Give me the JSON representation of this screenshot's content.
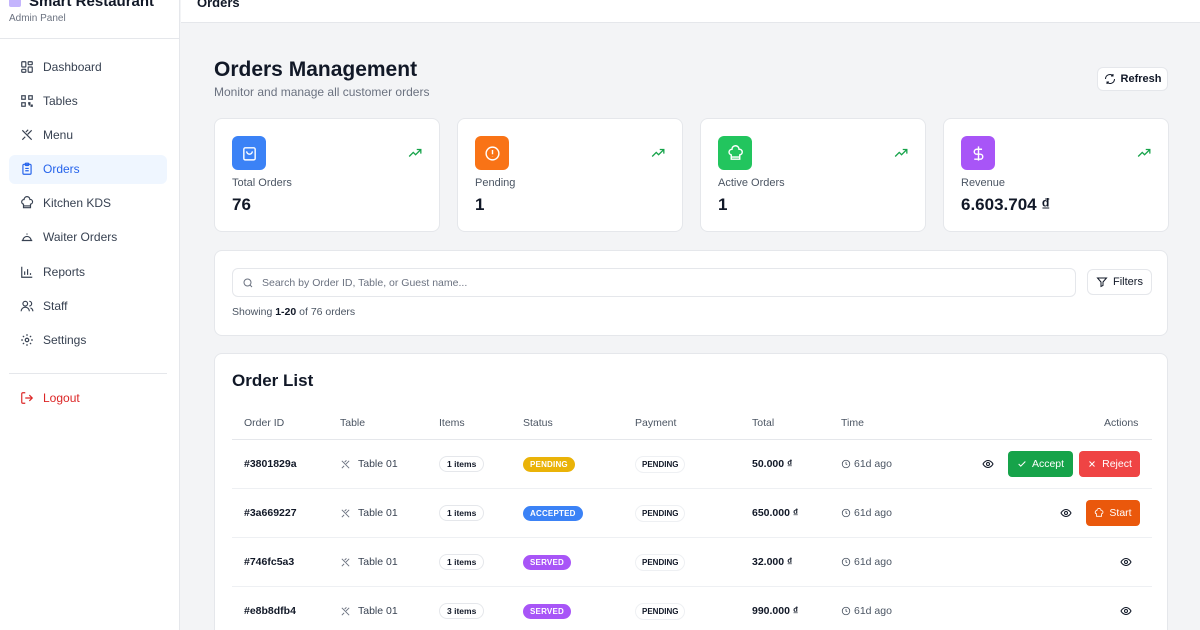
{
  "brand": {
    "title": "Smart Restaurant",
    "subtitle": "Admin Panel"
  },
  "sidebar": {
    "items": [
      {
        "label": "Dashboard",
        "icon": "dashboard-icon"
      },
      {
        "label": "Tables",
        "icon": "qr-icon"
      },
      {
        "label": "Menu",
        "icon": "utensils-icon"
      },
      {
        "label": "Orders",
        "icon": "clipboard-icon",
        "active": true
      },
      {
        "label": "Kitchen KDS",
        "icon": "chef-hat-icon"
      },
      {
        "label": "Waiter Orders",
        "icon": "bell-icon"
      },
      {
        "label": "Reports",
        "icon": "bar-chart-icon"
      },
      {
        "label": "Staff",
        "icon": "users-icon"
      },
      {
        "label": "Settings",
        "icon": "gear-icon"
      }
    ],
    "logout": "Logout"
  },
  "topbar": {
    "title": "Orders"
  },
  "header": {
    "title": "Orders Management",
    "subtitle": "Monitor and manage all customer orders",
    "refresh_label": "Refresh"
  },
  "stats": [
    {
      "label": "Total Orders",
      "value": "76",
      "color": "#3b82f6",
      "icon": "bag-icon"
    },
    {
      "label": "Pending",
      "value": "1",
      "color": "#f97316",
      "icon": "alert-circle-icon"
    },
    {
      "label": "Active Orders",
      "value": "1",
      "color": "#22c55e",
      "icon": "chef-hat-icon"
    },
    {
      "label": "Revenue",
      "value": "6.603.704 ₫",
      "color": "#a855f7",
      "icon": "dollar-icon"
    }
  ],
  "search": {
    "placeholder": "Search by Order ID, Table, or Guest name...",
    "value": "",
    "filters_label": "Filters",
    "showing_prefix": "Showing",
    "showing_range": "1-20",
    "showing_suffix": "of 76 orders"
  },
  "order_list": {
    "title": "Order List",
    "columns": [
      "Order ID",
      "Table",
      "Items",
      "Status",
      "Payment",
      "Total",
      "Time",
      "Actions"
    ],
    "rows": [
      {
        "id": "#3801829a",
        "table": "Table 01",
        "items": "1 items",
        "status": "PENDING",
        "status_color": "#eab308",
        "payment": "PENDING",
        "total": "50.000 ₫",
        "time": "61d ago",
        "actions": [
          "view",
          "accept",
          "reject"
        ]
      },
      {
        "id": "#3a669227",
        "table": "Table 01",
        "items": "1 items",
        "status": "ACCEPTED",
        "status_color": "#3b82f6",
        "payment": "PENDING",
        "total": "650.000 ₫",
        "time": "61d ago",
        "actions": [
          "view",
          "start"
        ]
      },
      {
        "id": "#746fc5a3",
        "table": "Table 01",
        "items": "1 items",
        "status": "SERVED",
        "status_color": "#a855f7",
        "payment": "PENDING",
        "total": "32.000 ₫",
        "time": "61d ago",
        "actions": [
          "view"
        ]
      },
      {
        "id": "#e8b8dfb4",
        "table": "Table 01",
        "items": "3 items",
        "status": "SERVED",
        "status_color": "#a855f7",
        "payment": "PENDING",
        "total": "990.000 ₫",
        "time": "61d ago",
        "actions": [
          "view"
        ]
      }
    ],
    "accept_label": "Accept",
    "reject_label": "Reject",
    "start_label": "Start"
  }
}
